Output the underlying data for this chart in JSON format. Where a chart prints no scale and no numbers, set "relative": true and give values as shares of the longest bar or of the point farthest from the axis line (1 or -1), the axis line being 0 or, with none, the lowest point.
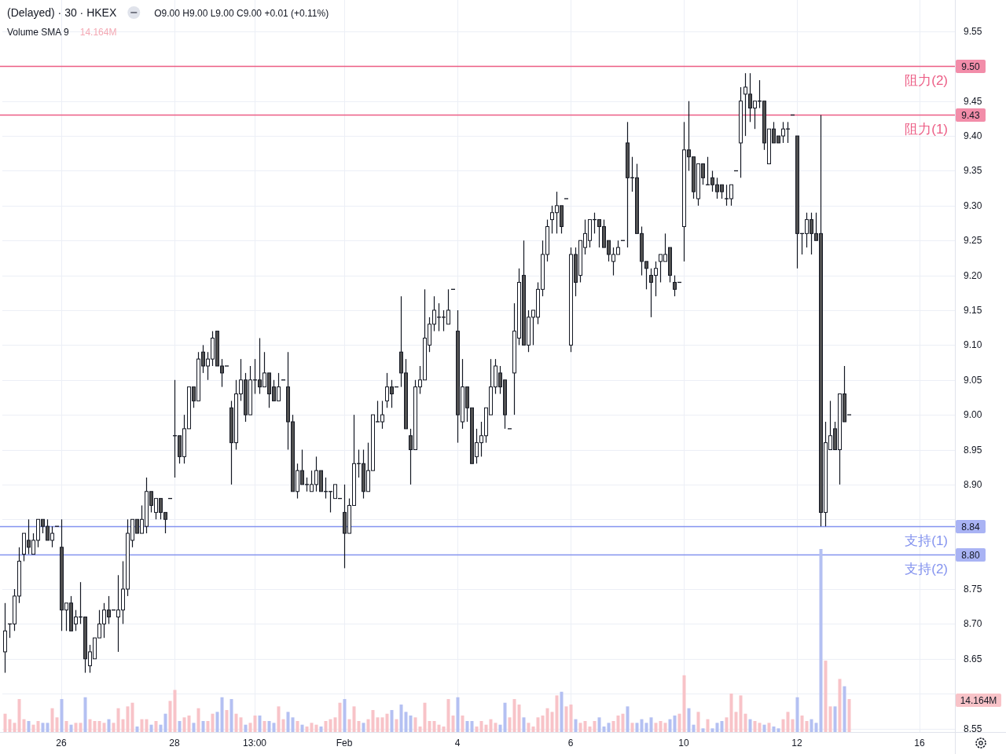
{
  "chart_data": [
    {
      "type": "candlestick",
      "title": "(Delayed) · 30 · HKEX",
      "annotations": [
        "O9.00 H9.00 L9.00 C9.00 +0.01 (+0.11%)",
        {
          "text": "9.50",
          "y": 9.5
        },
        {
          "text": "9.43",
          "y": 9.43
        },
        {
          "text": "8.84",
          "y": 8.84
        },
        {
          "text": "8.80",
          "y": 8.8
        }
      ],
      "categories": [
        null,
        null,
        null,
        null,
        null,
        null,
        null,
        null,
        null,
        null,
        null,
        null,
        "26",
        null,
        null,
        null,
        null,
        null,
        null,
        null,
        null,
        null,
        null,
        null,
        null,
        null,
        null,
        null,
        null,
        null,
        null,
        null,
        null,
        null,
        null,
        null,
        "28",
        null,
        null,
        null,
        null,
        null,
        null,
        null,
        null,
        null,
        null,
        null,
        null,
        null,
        null,
        null,
        null,
        "13:00",
        null,
        null,
        null,
        null,
        null,
        null,
        null,
        null,
        null,
        null,
        null,
        null,
        null,
        null,
        null,
        null,
        null,
        null,
        "Feb",
        null,
        null,
        null,
        null,
        null,
        null,
        null,
        null,
        null,
        null,
        null,
        null,
        null,
        null,
        null,
        null,
        null,
        null,
        null,
        null,
        null,
        null,
        null,
        "4",
        null,
        null,
        null,
        null,
        null,
        null,
        null,
        null,
        null,
        null,
        null,
        null,
        null,
        null,
        null,
        null,
        null,
        null,
        null,
        null,
        null,
        null,
        null,
        "6",
        null,
        null,
        null,
        null,
        null,
        null,
        null,
        null,
        null,
        null,
        null,
        null,
        null,
        null,
        null,
        null,
        null,
        null,
        null,
        null,
        null,
        null,
        null,
        "10",
        null,
        null,
        null,
        null,
        null,
        null,
        null,
        null,
        null,
        null,
        null,
        null,
        null,
        null,
        null,
        null,
        null,
        null,
        null,
        null,
        null,
        null,
        null,
        "12",
        null,
        null,
        null,
        null,
        null,
        null,
        null,
        null,
        null,
        null,
        null,
        null,
        null,
        null,
        null,
        null,
        null,
        null,
        null,
        null,
        null,
        null,
        null,
        null,
        null,
        "16",
        null,
        null,
        null,
        null,
        null,
        null,
        null
      ],
      "ohlc": [
        [
          8.66,
          8.73,
          8.63,
          8.69
        ],
        [
          8.7,
          8.7,
          8.68,
          8.7
        ],
        [
          8.7,
          8.75,
          8.69,
          8.74
        ],
        [
          8.74,
          8.81,
          8.73,
          8.79
        ],
        [
          8.8,
          8.83,
          8.79,
          8.83
        ],
        [
          8.82,
          8.85,
          8.8,
          8.81
        ],
        [
          8.8,
          8.83,
          8.8,
          8.82
        ],
        [
          8.82,
          8.85,
          8.81,
          8.85
        ],
        [
          8.85,
          8.85,
          8.83,
          8.84
        ],
        [
          8.84,
          8.85,
          8.82,
          8.82
        ],
        [
          8.82,
          8.84,
          8.81,
          8.83
        ],
        [
          8.84,
          8.84,
          8.84,
          8.84
        ],
        [
          8.81,
          8.85,
          8.69,
          8.72
        ],
        [
          8.72,
          8.73,
          8.69,
          8.73
        ],
        [
          8.73,
          8.74,
          8.69,
          8.69
        ],
        [
          8.7,
          8.72,
          8.69,
          8.71
        ],
        [
          8.71,
          8.76,
          8.7,
          8.71
        ],
        [
          8.71,
          8.71,
          8.63,
          8.65
        ],
        [
          8.64,
          8.67,
          8.63,
          8.66
        ],
        [
          8.65,
          8.68,
          8.65,
          8.68
        ],
        [
          8.68,
          8.72,
          8.68,
          8.7
        ],
        [
          8.7,
          8.73,
          8.68,
          8.72
        ],
        [
          8.72,
          8.74,
          8.7,
          8.71
        ],
        [
          8.72,
          8.72,
          8.72,
          8.72
        ],
        [
          8.71,
          8.77,
          8.66,
          8.72
        ],
        [
          8.72,
          8.79,
          8.7,
          8.75
        ],
        [
          8.75,
          8.85,
          8.74,
          8.83
        ],
        [
          8.82,
          8.85,
          8.81,
          8.85
        ],
        [
          8.85,
          8.85,
          8.83,
          8.83
        ],
        [
          8.83,
          8.87,
          8.83,
          8.85
        ],
        [
          8.84,
          8.91,
          8.83,
          8.89
        ],
        [
          8.89,
          8.89,
          8.86,
          8.87
        ],
        [
          8.86,
          8.88,
          8.85,
          8.88
        ],
        [
          8.88,
          8.88,
          8.85,
          8.86
        ],
        [
          8.86,
          8.86,
          8.83,
          8.85
        ],
        [
          8.88,
          8.88,
          8.88,
          8.88
        ],
        [
          8.97,
          9.05,
          8.91,
          8.97
        ],
        [
          8.97,
          8.97,
          8.93,
          8.94
        ],
        [
          8.94,
          9.0,
          8.93,
          8.98
        ],
        [
          8.98,
          9.04,
          8.98,
          9.04
        ],
        [
          9.04,
          9.04,
          9.01,
          9.02
        ],
        [
          9.02,
          9.09,
          9.02,
          9.08
        ],
        [
          9.09,
          9.1,
          9.06,
          9.07
        ],
        [
          9.07,
          9.09,
          9.05,
          9.08
        ],
        [
          9.08,
          9.12,
          9.07,
          9.11
        ],
        [
          9.12,
          9.12,
          9.07,
          9.07
        ],
        [
          9.07,
          9.08,
          9.04,
          9.06
        ],
        [
          9.07,
          9.07,
          9.07,
          9.07
        ],
        [
          9.01,
          9.02,
          8.9,
          8.96
        ],
        [
          8.96,
          9.05,
          8.95,
          9.03
        ],
        [
          9.03,
          9.08,
          9.02,
          9.05
        ],
        [
          9.05,
          9.06,
          8.99,
          9.0
        ],
        [
          9.0,
          9.07,
          9.0,
          9.05
        ],
        [
          9.05,
          9.08,
          9.03,
          9.05
        ],
        [
          9.05,
          9.11,
          9.03,
          9.04
        ],
        [
          9.04,
          9.09,
          9.04,
          9.06
        ],
        [
          9.06,
          9.06,
          9.01,
          9.03
        ],
        [
          9.04,
          9.05,
          9.02,
          9.02
        ],
        [
          9.02,
          9.06,
          9.02,
          9.04
        ],
        [
          9.05,
          9.05,
          9.05,
          9.05
        ],
        [
          9.04,
          9.09,
          8.95,
          8.99
        ],
        [
          8.99,
          9.0,
          8.89,
          8.89
        ],
        [
          8.89,
          8.93,
          8.88,
          8.92
        ],
        [
          8.92,
          8.95,
          8.9,
          8.9
        ],
        [
          8.9,
          8.91,
          8.89,
          8.9
        ],
        [
          8.89,
          8.92,
          8.89,
          8.9
        ],
        [
          8.9,
          8.94,
          8.89,
          8.92
        ],
        [
          8.92,
          8.92,
          8.89,
          8.89
        ],
        [
          8.89,
          8.91,
          8.88,
          8.89
        ],
        [
          8.89,
          8.89,
          8.86,
          8.89
        ],
        [
          8.88,
          8.9,
          8.88,
          8.9
        ],
        [
          8.88,
          8.88,
          8.88,
          8.88
        ],
        [
          8.86,
          8.9,
          8.78,
          8.83
        ],
        [
          8.83,
          8.88,
          8.83,
          8.87
        ],
        [
          8.87,
          9.0,
          8.87,
          8.93
        ],
        [
          8.93,
          8.95,
          8.91,
          8.93
        ],
        [
          8.93,
          8.95,
          8.88,
          8.89
        ],
        [
          8.89,
          8.96,
          8.89,
          8.92
        ],
        [
          8.92,
          9.0,
          8.92,
          9.0
        ],
        [
          8.99,
          9.02,
          8.99,
          8.99
        ],
        [
          8.99,
          9.02,
          8.98,
          9.0
        ],
        [
          9.02,
          9.06,
          9.01,
          9.04
        ],
        [
          9.04,
          9.05,
          9.01,
          9.03
        ],
        [
          9.04,
          9.04,
          9.04,
          9.04
        ],
        [
          9.09,
          9.17,
          9.04,
          9.06
        ],
        [
          9.06,
          9.08,
          8.98,
          8.98
        ],
        [
          8.97,
          8.98,
          8.9,
          8.95
        ],
        [
          8.95,
          9.05,
          8.95,
          9.04
        ],
        [
          9.04,
          9.07,
          9.03,
          9.05
        ],
        [
          9.05,
          9.18,
          9.05,
          9.11
        ],
        [
          9.1,
          9.14,
          9.09,
          9.13
        ],
        [
          9.13,
          9.17,
          9.12,
          9.15
        ],
        [
          9.14,
          9.16,
          9.12,
          9.14
        ],
        [
          9.14,
          9.15,
          9.12,
          9.14
        ],
        [
          9.13,
          9.18,
          9.13,
          9.15
        ],
        [
          9.18,
          9.18,
          9.18,
          9.18
        ],
        [
          9.12,
          9.15,
          8.96,
          9.0
        ],
        [
          8.99,
          9.08,
          8.98,
          9.04
        ],
        [
          9.04,
          9.04,
          8.99,
          9.01
        ],
        [
          9.01,
          9.01,
          8.93,
          8.93
        ],
        [
          8.94,
          8.98,
          8.93,
          8.96
        ],
        [
          8.96,
          8.99,
          8.94,
          8.97
        ],
        [
          8.97,
          9.01,
          8.96,
          9.01
        ],
        [
          9.0,
          9.08,
          9.0,
          9.04
        ],
        [
          9.04,
          9.08,
          9.03,
          9.07
        ],
        [
          9.06,
          9.07,
          9.03,
          9.04
        ],
        [
          9.05,
          9.05,
          8.98,
          9.0
        ],
        [
          8.98,
          8.98,
          8.98,
          8.98
        ],
        [
          9.06,
          9.16,
          9.0,
          9.12
        ],
        [
          9.11,
          9.21,
          9.1,
          9.19
        ],
        [
          9.2,
          9.25,
          9.1,
          9.1
        ],
        [
          9.1,
          9.15,
          9.09,
          9.14
        ],
        [
          9.14,
          9.15,
          9.1,
          9.15
        ],
        [
          9.14,
          9.19,
          9.13,
          9.18
        ],
        [
          9.18,
          9.25,
          9.17,
          9.23
        ],
        [
          9.23,
          9.28,
          9.22,
          9.27
        ],
        [
          9.28,
          9.3,
          9.26,
          9.29
        ],
        [
          9.29,
          9.32,
          9.26,
          9.3
        ],
        [
          9.3,
          9.3,
          9.26,
          9.27
        ],
        [
          9.31,
          9.31,
          9.31,
          9.31
        ],
        [
          9.1,
          9.24,
          9.09,
          9.23
        ],
        [
          9.23,
          9.24,
          9.17,
          9.19
        ],
        [
          9.2,
          9.25,
          9.19,
          9.25
        ],
        [
          9.24,
          9.28,
          9.23,
          9.26
        ],
        [
          9.25,
          9.28,
          9.24,
          9.28
        ],
        [
          9.28,
          9.29,
          9.26,
          9.28
        ],
        [
          9.28,
          9.28,
          9.24,
          9.27
        ],
        [
          9.27,
          9.28,
          9.24,
          9.24
        ],
        [
          9.25,
          9.25,
          9.22,
          9.23
        ],
        [
          9.22,
          9.24,
          9.2,
          9.23
        ],
        [
          9.23,
          9.25,
          9.23,
          9.24
        ],
        [
          9.25,
          9.25,
          9.25,
          9.25
        ],
        [
          9.39,
          9.42,
          9.24,
          9.34
        ],
        [
          9.34,
          9.37,
          9.32,
          9.34
        ],
        [
          9.34,
          9.36,
          9.26,
          9.26
        ],
        [
          9.26,
          9.27,
          9.2,
          9.22
        ],
        [
          9.22,
          9.22,
          9.18,
          9.21
        ],
        [
          9.2,
          9.21,
          9.14,
          9.19
        ],
        [
          9.2,
          9.22,
          9.17,
          9.21
        ],
        [
          9.22,
          9.23,
          9.19,
          9.23
        ],
        [
          9.22,
          9.26,
          9.22,
          9.23
        ],
        [
          9.24,
          9.24,
          9.19,
          9.2
        ],
        [
          9.19,
          9.2,
          9.17,
          9.18
        ],
        [
          9.19,
          9.19,
          9.19,
          9.19
        ],
        [
          9.27,
          9.42,
          9.22,
          9.38
        ],
        [
          9.38,
          9.45,
          9.35,
          9.37
        ],
        [
          9.37,
          9.37,
          9.31,
          9.32
        ],
        [
          9.31,
          9.36,
          9.3,
          9.36
        ],
        [
          9.36,
          9.36,
          9.33,
          9.34
        ],
        [
          9.33,
          9.37,
          9.33,
          9.33
        ],
        [
          9.34,
          9.35,
          9.32,
          9.33
        ],
        [
          9.33,
          9.34,
          9.31,
          9.32
        ],
        [
          9.33,
          9.33,
          9.31,
          9.32
        ],
        [
          9.31,
          9.33,
          9.3,
          9.31
        ],
        [
          9.31,
          9.33,
          9.3,
          9.33
        ],
        [
          9.35,
          9.35,
          9.35,
          9.35
        ],
        [
          9.39,
          9.47,
          9.34,
          9.45
        ],
        [
          9.46,
          9.49,
          9.4,
          9.47
        ],
        [
          9.46,
          9.49,
          9.42,
          9.44
        ],
        [
          9.44,
          9.45,
          9.41,
          9.45
        ],
        [
          9.45,
          9.48,
          9.44,
          9.45
        ],
        [
          9.45,
          9.45,
          9.38,
          9.39
        ],
        [
          9.36,
          9.41,
          9.36,
          9.41
        ],
        [
          9.41,
          9.42,
          9.39,
          9.39
        ],
        [
          9.4,
          9.4,
          9.39,
          9.39
        ],
        [
          9.4,
          9.42,
          9.39,
          9.41
        ],
        [
          9.41,
          9.42,
          9.39,
          9.41
        ],
        [
          9.43,
          9.43,
          9.43,
          9.43
        ],
        [
          9.4,
          9.4,
          9.21,
          9.26
        ],
        [
          9.26,
          9.26,
          9.23,
          9.26
        ],
        [
          9.26,
          9.29,
          9.24,
          9.28
        ],
        [
          9.28,
          9.29,
          9.23,
          9.26
        ],
        [
          9.26,
          9.29,
          9.25,
          9.25
        ],
        [
          9.26,
          9.43,
          8.84,
          8.86
        ],
        [
          8.86,
          8.99,
          8.84,
          8.96
        ],
        [
          8.95,
          9.02,
          8.95,
          8.97
        ],
        [
          8.98,
          8.99,
          8.95,
          8.95
        ],
        [
          8.95,
          9.03,
          8.9,
          9.03
        ],
        [
          9.03,
          9.07,
          8.99,
          8.99
        ],
        [
          9.0,
          9.0,
          9.0,
          9.0
        ],
        null,
        null,
        null,
        null,
        null,
        null,
        null,
        null,
        null,
        null,
        null,
        null,
        null,
        null,
        null,
        null,
        null,
        null,
        null,
        null,
        null,
        null
      ],
      "ylim": [
        8.545,
        9.595
      ],
      "yticks": [
        9.55,
        9.45,
        {
          "value": 9.4,
          "label": "9.40"
        },
        9.35,
        {
          "value": 9.3,
          "label": "9.30"
        },
        9.25,
        {
          "value": 9.2,
          "label": "9.20"
        },
        9.15,
        {
          "value": 9.1,
          "label": "9.10"
        },
        9.05,
        {
          "value": 9,
          "label": "9.00"
        },
        8.95,
        {
          "value": 8.9,
          "label": "8.90"
        },
        {
          "value": 8.85,
          "label": null
        },
        8.75,
        {
          "value": 8.7,
          "label": "8.70"
        },
        8.65,
        {
          "value": 8.6,
          "label": null
        },
        8.55
      ],
      "grid": true,
      "ref_lines": [
        {
          "axis": "y",
          "value": 9.5,
          "label": "阻力(2)",
          "color": "#ec5d85"
        },
        {
          "axis": "y",
          "value": 9.43,
          "label": "阻力(1)",
          "color": "#ec5d85"
        },
        {
          "axis": "y",
          "value": 8.84,
          "label": "支持(1)",
          "color": "#8493ef"
        },
        {
          "axis": "y",
          "value": 8.8,
          "label": "支持(2)",
          "color": "#8493ef"
        }
      ]
    },
    {
      "type": "bar",
      "relative": true,
      "annotations": [
        "Volume SMA 9",
        "14.164M",
        "14.164M"
      ],
      "categories": [
        null,
        null,
        null,
        null,
        null,
        null,
        null,
        null,
        null,
        null,
        null,
        null,
        null,
        null,
        null,
        null,
        null,
        null,
        null,
        null,
        null,
        null,
        null,
        null,
        null,
        null,
        null,
        null,
        null,
        null,
        null,
        null,
        null,
        null,
        null,
        null,
        null,
        null,
        null,
        null,
        null,
        null,
        null,
        null,
        null,
        null,
        null,
        null,
        null,
        null,
        null,
        null,
        null,
        null,
        null,
        null,
        null,
        null,
        null,
        null,
        null,
        null,
        null,
        null,
        null,
        null,
        null,
        null,
        null,
        null,
        null,
        null,
        null,
        null,
        null,
        null,
        null,
        null,
        null,
        null,
        null,
        null,
        null,
        null,
        null,
        null,
        null,
        null,
        null,
        null,
        null,
        null,
        null,
        null,
        null,
        null,
        null,
        null,
        null,
        null,
        null,
        null,
        null,
        null,
        null,
        null,
        null,
        null,
        null,
        null,
        null,
        null,
        null,
        null,
        null,
        null,
        null,
        null,
        null,
        null,
        null,
        null,
        null,
        null,
        null,
        null,
        null,
        null,
        null,
        null,
        null,
        null,
        null,
        null,
        null,
        null,
        null,
        null,
        null,
        null,
        null,
        null,
        null,
        null,
        null,
        null,
        null,
        null,
        null,
        null,
        null,
        null,
        null,
        null,
        null,
        null,
        null,
        null,
        null,
        null,
        null,
        null,
        null,
        null,
        null,
        null,
        null,
        null,
        null,
        null,
        null,
        null,
        null,
        null,
        null,
        null,
        null,
        null,
        null,
        null,
        null,
        null,
        null,
        null,
        null,
        null,
        null,
        null,
        null,
        null,
        null,
        null,
        null,
        null,
        null,
        null,
        null,
        null,
        null,
        null,
        null,
        null
      ],
      "values": [
        0.1,
        0.07,
        0.05,
        0.18,
        0.07,
        0.06,
        0.04,
        0.06,
        0.05,
        0.05,
        0.13,
        0.08,
        0.18,
        0.06,
        0.04,
        0.05,
        0.05,
        0.19,
        0.07,
        0.06,
        0.06,
        0.05,
        0.07,
        0.05,
        0.13,
        0.07,
        0.14,
        0.16,
        0.03,
        0.07,
        0.07,
        0.04,
        0.06,
        0.04,
        0.1,
        0.17,
        0.23,
        0.06,
        0.08,
        0.09,
        0.05,
        0.13,
        0.06,
        0.06,
        0.1,
        0.11,
        0.19,
        0.12,
        0.18,
        0.1,
        0.08,
        0.04,
        0.05,
        0.09,
        0.09,
        0.06,
        0.06,
        0.05,
        0.14,
        0.07,
        0.11,
        0.08,
        0.06,
        0.04,
        0.03,
        0.05,
        0.04,
        0.03,
        0.06,
        0.07,
        0.08,
        0.16,
        0.18,
        0.07,
        0.14,
        0.06,
        0.05,
        0.07,
        0.12,
        0.08,
        0.08,
        0.1,
        0.12,
        0.07,
        0.15,
        0.11,
        0.09,
        0.08,
        0.03,
        0.16,
        0.06,
        0.06,
        0.04,
        0.03,
        0.18,
        0.09,
        0.19,
        0.09,
        0.06,
        0.06,
        0.03,
        0.06,
        0.04,
        0.07,
        0.05,
        0.04,
        0.16,
        0.08,
        0.18,
        0.15,
        0.08,
        0.05,
        0.03,
        0.08,
        0.09,
        0.13,
        0.11,
        0.2,
        0.22,
        0.14,
        0.15,
        0.07,
        0.05,
        0.06,
        0.03,
        0.06,
        0.08,
        0.03,
        0.05,
        0.06,
        0.09,
        0.1,
        0.14,
        0.05,
        0.05,
        0.07,
        0.05,
        0.08,
        0.05,
        0.06,
        0.05,
        0.07,
        0.09,
        0.1,
        0.31,
        0.13,
        0.04,
        0.11,
        0.02,
        0.07,
        0.02,
        0.05,
        0.06,
        0.08,
        0.21,
        0.11,
        0.2,
        0.1,
        0.07,
        0.06,
        0.05,
        0.04,
        0.05,
        0.03,
        0.02,
        0.07,
        0.11,
        0.07,
        0.19,
        0.09,
        0.06,
        0.07,
        0.05,
        1,
        0.39,
        0.14,
        0.14,
        0.29,
        0.25,
        0.18,
        null,
        null,
        null,
        null,
        null,
        null,
        null,
        null,
        null,
        null,
        null,
        null,
        null,
        null,
        null,
        null,
        null,
        null,
        null,
        null,
        null,
        null
      ],
      "colors": [
        "#f8c3c8",
        "#f8c3c8",
        "#f8c3c8",
        "#f8c3c8",
        "#f8c3c8",
        "#b4c0f2",
        "#f8c3c8",
        "#f8c3c8",
        "#b4c0f2",
        "#b4c0f2",
        "#f8c3c8",
        "#f8c3c8",
        "#b4c0f2",
        "#f8c3c8",
        "#b4c0f2",
        "#f8c3c8",
        "#f8c3c8",
        "#b4c0f2",
        "#f8c3c8",
        "#f8c3c8",
        "#f8c3c8",
        "#f8c3c8",
        "#b4c0f2",
        "#f8c3c8",
        "#f8c3c8",
        "#f8c3c8",
        "#f8c3c8",
        "#f8c3c8",
        "#b4c0f2",
        "#f8c3c8",
        "#f8c3c8",
        "#b4c0f2",
        "#f8c3c8",
        "#b4c0f2",
        "#b4c0f2",
        "#f8c3c8",
        "#f8c3c8",
        "#b4c0f2",
        "#f8c3c8",
        "#f8c3c8",
        "#b4c0f2",
        "#f8c3c8",
        "#b4c0f2",
        "#f8c3c8",
        "#f8c3c8",
        "#b4c0f2",
        "#b4c0f2",
        "#f8c3c8",
        "#b4c0f2",
        "#f8c3c8",
        "#f8c3c8",
        "#b4c0f2",
        "#f8c3c8",
        "#f8c3c8",
        "#b4c0f2",
        "#f8c3c8",
        "#b4c0f2",
        "#b4c0f2",
        "#f8c3c8",
        "#f8c3c8",
        "#b4c0f2",
        "#b4c0f2",
        "#f8c3c8",
        "#b4c0f2",
        "#f8c3c8",
        "#f8c3c8",
        "#f8c3c8",
        "#b4c0f2",
        "#f8c3c8",
        "#f8c3c8",
        "#f8c3c8",
        "#f8c3c8",
        "#b4c0f2",
        "#f8c3c8",
        "#f8c3c8",
        "#f8c3c8",
        "#b4c0f2",
        "#f8c3c8",
        "#f8c3c8",
        "#f8c3c8",
        "#f8c3c8",
        "#f8c3c8",
        "#b4c0f2",
        "#f8c3c8",
        "#b4c0f2",
        "#b4c0f2",
        "#b4c0f2",
        "#f8c3c8",
        "#f8c3c8",
        "#f8c3c8",
        "#f8c3c8",
        "#f8c3c8",
        "#f8c3c8",
        "#f8c3c8",
        "#f8c3c8",
        "#f8c3c8",
        "#b4c0f2",
        "#f8c3c8",
        "#b4c0f2",
        "#b4c0f2",
        "#f8c3c8",
        "#f8c3c8",
        "#f8c3c8",
        "#f8c3c8",
        "#f8c3c8",
        "#b4c0f2",
        "#b4c0f2",
        "#f8c3c8",
        "#f8c3c8",
        "#f8c3c8",
        "#b4c0f2",
        "#f8c3c8",
        "#f8c3c8",
        "#f8c3c8",
        "#f8c3c8",
        "#f8c3c8",
        "#f8c3c8",
        "#f8c3c8",
        "#b4c0f2",
        "#f8c3c8",
        "#f8c3c8",
        "#b4c0f2",
        "#f8c3c8",
        "#f8c3c8",
        "#f8c3c8",
        "#f8c3c8",
        "#b4c0f2",
        "#b4c0f2",
        "#b4c0f2",
        "#f8c3c8",
        "#f8c3c8",
        "#f8c3c8",
        "#b4c0f2",
        "#f8c3c8",
        "#b4c0f2",
        "#b4c0f2",
        "#b4c0f2",
        "#b4c0f2",
        "#f8c3c8",
        "#f8c3c8",
        "#f8c3c8",
        "#b4c0f2",
        "#b4c0f2",
        "#f8c3c8",
        "#f8c3c8",
        "#b4c0f2",
        "#b4c0f2",
        "#f8c3c8",
        "#b4c0f2",
        "#f8c3c8",
        "#b4c0f2",
        "#b4c0f2",
        "#b4c0f2",
        "#f8c3c8",
        "#f8c3c8",
        "#f8c3c8",
        "#f8c3c8",
        "#f8c3c8",
        "#b4c0f2",
        "#f8c3c8",
        "#f8c3c8",
        "#b4c0f2",
        "#f8c3c8",
        "#b4c0f2",
        "#b4c0f2",
        "#f8c3c8",
        "#f8c3c8",
        "#f8c3c8",
        "#b4c0f2",
        "#f8c3c8",
        "#f8c3c8",
        "#b4c0f2",
        "#b4c0f2",
        "#b4c0f2",
        "#f8c3c8",
        "#f8c3c8",
        "#b4c0f2",
        "#f8c3c8",
        "#b4c0f2",
        "#f8c3c8",
        null,
        null,
        null,
        null,
        null,
        null,
        null,
        null,
        null,
        null,
        null,
        null,
        null,
        null,
        null,
        null,
        null,
        null,
        null,
        null,
        null,
        null
      ]
    }
  ]
}
